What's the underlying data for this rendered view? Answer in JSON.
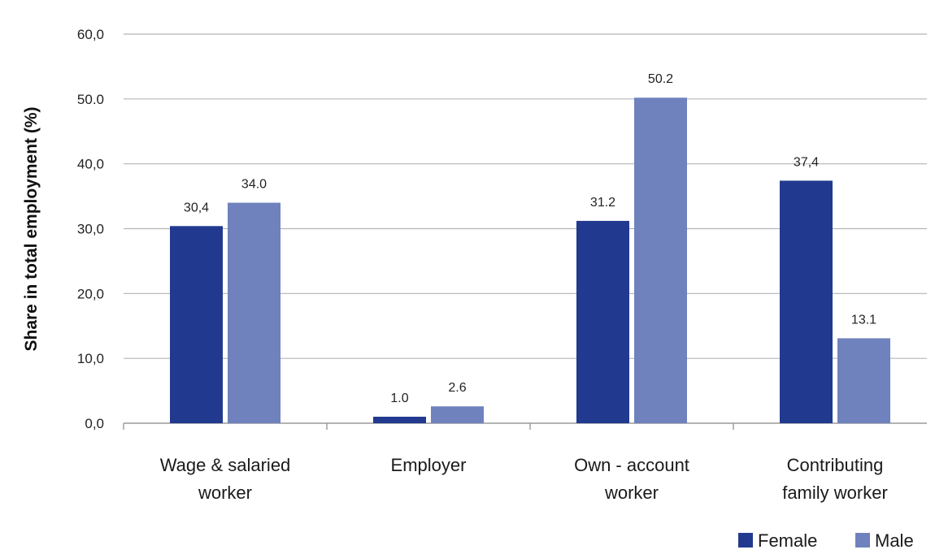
{
  "chart_data": {
    "type": "bar",
    "title": "",
    "xlabel": "",
    "ylabel": "Share in total employment (%)",
    "ylim": [
      0,
      60
    ],
    "yticks": [
      0,
      10,
      20,
      30,
      40,
      50,
      60
    ],
    "ytick_labels": [
      "0,0",
      "10,0",
      "20,0",
      "30,0",
      "40,0",
      "50.0",
      "60,0"
    ],
    "grid": true,
    "legend": "bottom-right",
    "categories": [
      [
        "Wage & salaried",
        "worker"
      ],
      [
        "Employer"
      ],
      [
        "Own - account",
        "worker"
      ],
      [
        "Contributing",
        "family worker"
      ]
    ],
    "series": [
      {
        "name": "Female",
        "color": "#213a8f",
        "values": [
          30.4,
          1.0,
          31.2,
          37.4
        ],
        "labels": [
          "30,4",
          "1.0",
          "31.2",
          "37,4"
        ]
      },
      {
        "name": "Male",
        "color": "#6f82bd",
        "values": [
          34.0,
          2.6,
          50.2,
          13.1
        ],
        "labels": [
          "34.0",
          "2.6",
          "50.2",
          "13.1"
        ]
      }
    ]
  }
}
